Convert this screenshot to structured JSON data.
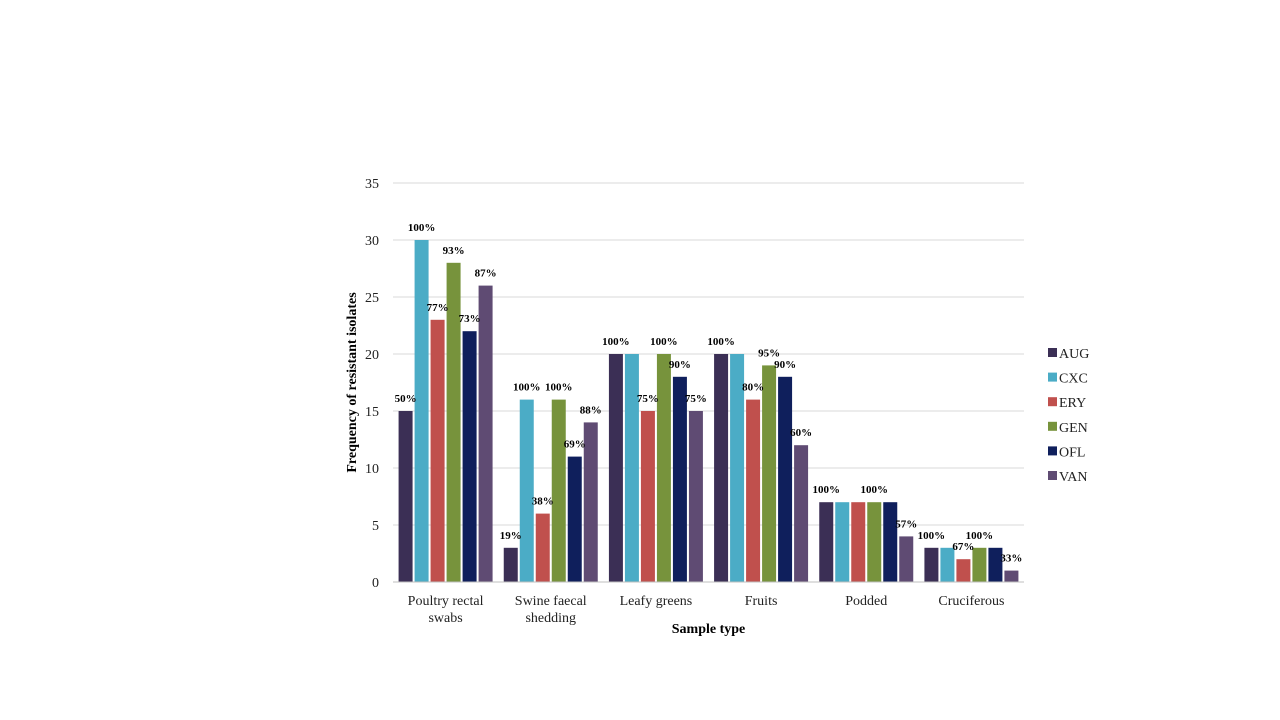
{
  "chart_data": {
    "type": "bar",
    "title": "",
    "xlabel": "Sample type",
    "ylabel": "Frequency of resistant isolates",
    "ylim": [
      0,
      35
    ],
    "yticks": [
      0,
      5,
      10,
      15,
      20,
      25,
      30,
      35
    ],
    "grid": true,
    "legend_position": "right",
    "categories": [
      [
        "Poultry rectal",
        "swabs"
      ],
      [
        "Swine faecal",
        "shedding"
      ],
      [
        "Leafy greens"
      ],
      [
        "Fruits"
      ],
      [
        "Podded"
      ],
      [
        "Cruciferous"
      ]
    ],
    "series": [
      {
        "name": "AUG",
        "color": "#3b2f55",
        "values": [
          15,
          3,
          20,
          20,
          7,
          3
        ],
        "labels": [
          "50%",
          "19%",
          "100%",
          "100%",
          "100%",
          "100%"
        ]
      },
      {
        "name": "CXC",
        "color": "#4bacc6",
        "values": [
          30,
          16,
          20,
          20,
          7,
          3
        ],
        "labels": [
          "100%",
          "100%",
          "",
          "",
          "",
          ""
        ]
      },
      {
        "name": "ERY",
        "color": "#c0504d",
        "values": [
          23,
          6,
          15,
          16,
          7,
          2
        ],
        "labels": [
          "77%",
          "38%",
          "75%",
          "80%",
          "",
          "67%"
        ]
      },
      {
        "name": "GEN",
        "color": "#77933c",
        "values": [
          28,
          16,
          20,
          19,
          7,
          3
        ],
        "labels": [
          "93%",
          "100%",
          "100%",
          "95%",
          "100%",
          "100%"
        ]
      },
      {
        "name": "OFL",
        "color": "#0f1f5c",
        "values": [
          22,
          11,
          18,
          18,
          7,
          3
        ],
        "labels": [
          "73%",
          "69%",
          "90%",
          "90%",
          "",
          ""
        ]
      },
      {
        "name": "VAN",
        "color": "#5f4b73",
        "values": [
          26,
          14,
          15,
          12,
          4,
          1
        ],
        "labels": [
          "87%",
          "88%",
          "75%",
          "60%",
          "57%",
          "33%"
        ]
      }
    ]
  }
}
